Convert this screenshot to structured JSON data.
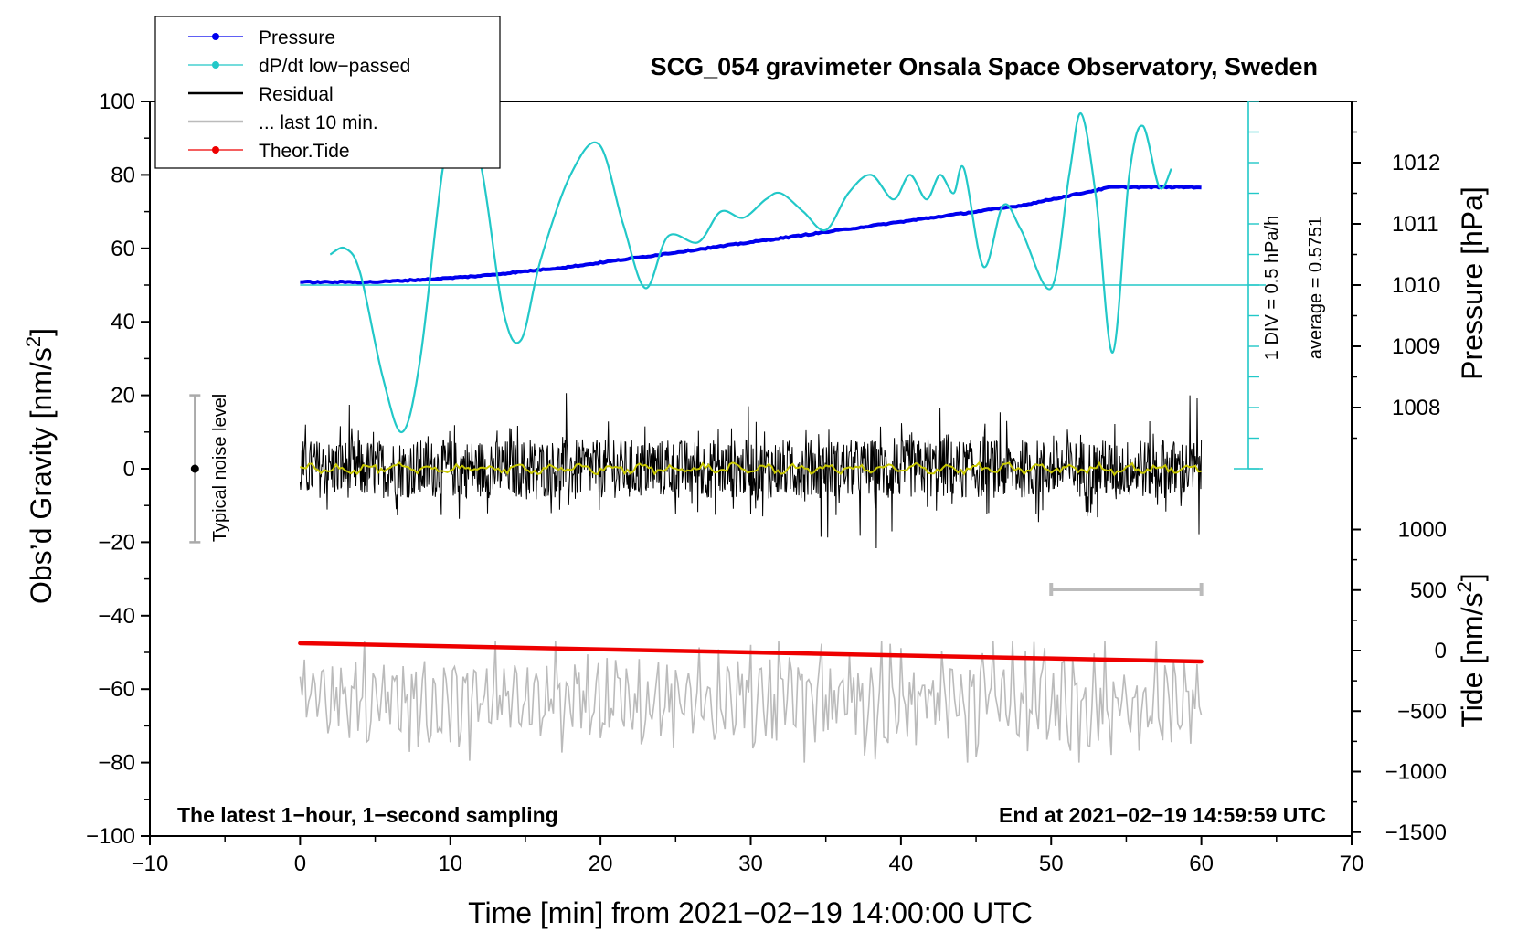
{
  "chart_data": {
    "type": "line",
    "title": "SCG_054 gravimeter Onsala Space Observatory, Sweden",
    "xlabel": "Time [min] from 2021−02−19 14:00:00 UTC",
    "ylabel_left": "Obs’d Gravity [nm/s",
    "ylabel_left_sup": "2",
    "ylabel_left_end": "]",
    "ylabel_right_pressure": "Pressure [hPa]",
    "ylabel_right_tide": "Tide [nm/s",
    "ylabel_right_tide_sup": "2",
    "ylabel_right_tide_end": "]",
    "xlim": [
      -10,
      70
    ],
    "ylim_left": [
      -100,
      100
    ],
    "x_ticks": [
      "−10",
      "0",
      "10",
      "20",
      "30",
      "40",
      "50",
      "60",
      "70"
    ],
    "y_ticks_left": [
      "−100",
      "−80",
      "−60",
      "−40",
      "−20",
      "0",
      "20",
      "40",
      "60",
      "80",
      "100"
    ],
    "pressure_ticks": [
      "1008",
      "1009",
      "1010",
      "1011",
      "1012"
    ],
    "tide_ticks": [
      "−1500",
      "−1000",
      "−500",
      "0",
      "500",
      "1000"
    ],
    "legend": [
      "Pressure",
      "dP/dt low−passed",
      "Residual",
      "... last 10 min.",
      "Theor.Tide"
    ],
    "colors": {
      "pressure": "#0000ee",
      "dpdt": "#22c8c8",
      "residual": "#000000",
      "smoothed": "#c8c800",
      "last10": "#bbbbbb",
      "tide": "#ee0000",
      "noise": "#aaaaaa"
    },
    "series": [
      {
        "name": "Pressure",
        "unit": "hPa",
        "x": [
          0,
          5,
          9,
          12,
          18,
          24,
          30,
          36,
          42,
          48,
          54,
          60
        ],
        "values": [
          1010.05,
          1010.05,
          1010.1,
          1010.15,
          1010.3,
          1010.5,
          1010.7,
          1010.9,
          1011.1,
          1011.3,
          1011.6,
          1011.6
        ]
      },
      {
        "name": "dP/dt low−passed",
        "unit": "DIV (0.5 hPa/h)",
        "x": [
          2,
          3,
          4,
          5.5,
          6.8,
          8,
          9.5,
          10.5,
          12,
          13.5,
          14.7,
          16,
          18,
          19.9,
          21.5,
          23,
          24.5,
          26.5,
          28,
          29.5,
          31,
          32,
          33.5,
          35,
          36.5,
          38,
          39.5,
          40.6,
          41.7,
          42.6,
          43.5,
          44.2,
          45.5,
          46.8,
          48,
          50,
          51.2,
          52,
          53,
          54.1,
          55.2,
          56.1,
          57.2,
          58
        ],
        "values": [
          0.5,
          0.6,
          0.2,
          -1.5,
          -2.4,
          -1.2,
          1.9,
          2.7,
          2.0,
          -0.4,
          -0.9,
          0.4,
          1.8,
          2.3,
          1.0,
          -0.05,
          0.8,
          0.7,
          1.2,
          1.1,
          1.4,
          1.5,
          1.2,
          0.9,
          1.5,
          1.8,
          1.4,
          1.8,
          1.4,
          1.8,
          1.5,
          1.9,
          0.3,
          1.3,
          0.9,
          -0.05,
          1.8,
          2.8,
          1.4,
          -1.1,
          1.8,
          2.6,
          1.6,
          1.9
        ]
      },
      {
        "name": "Residual",
        "unit": "nm/s²",
        "x": [
          0,
          60
        ],
        "values": [
          0,
          0
        ],
        "envelope": [
          -10,
          10
        ]
      },
      {
        "name": "... last 10 min.",
        "unit": "nm/s² (offset)",
        "x": [
          0,
          60
        ],
        "values": [
          -63,
          -63
        ],
        "envelope": [
          -80,
          -47
        ]
      },
      {
        "name": "Theor.Tide",
        "unit": "nm/s²",
        "x": [
          0,
          60
        ],
        "values": [
          10,
          -60
        ]
      }
    ],
    "pressure_average_text": "average = 0.5751",
    "div_text": "1 DIV = 0.5 hPa/h",
    "noise_label": "Typical noise level",
    "noise_range": [
      -20,
      20
    ],
    "last10_bracket": [
      50,
      60
    ],
    "annotation_left": "The latest 1−hour, 1−second sampling",
    "annotation_right": "End at 2021−02−19 14:59:59 UTC"
  }
}
